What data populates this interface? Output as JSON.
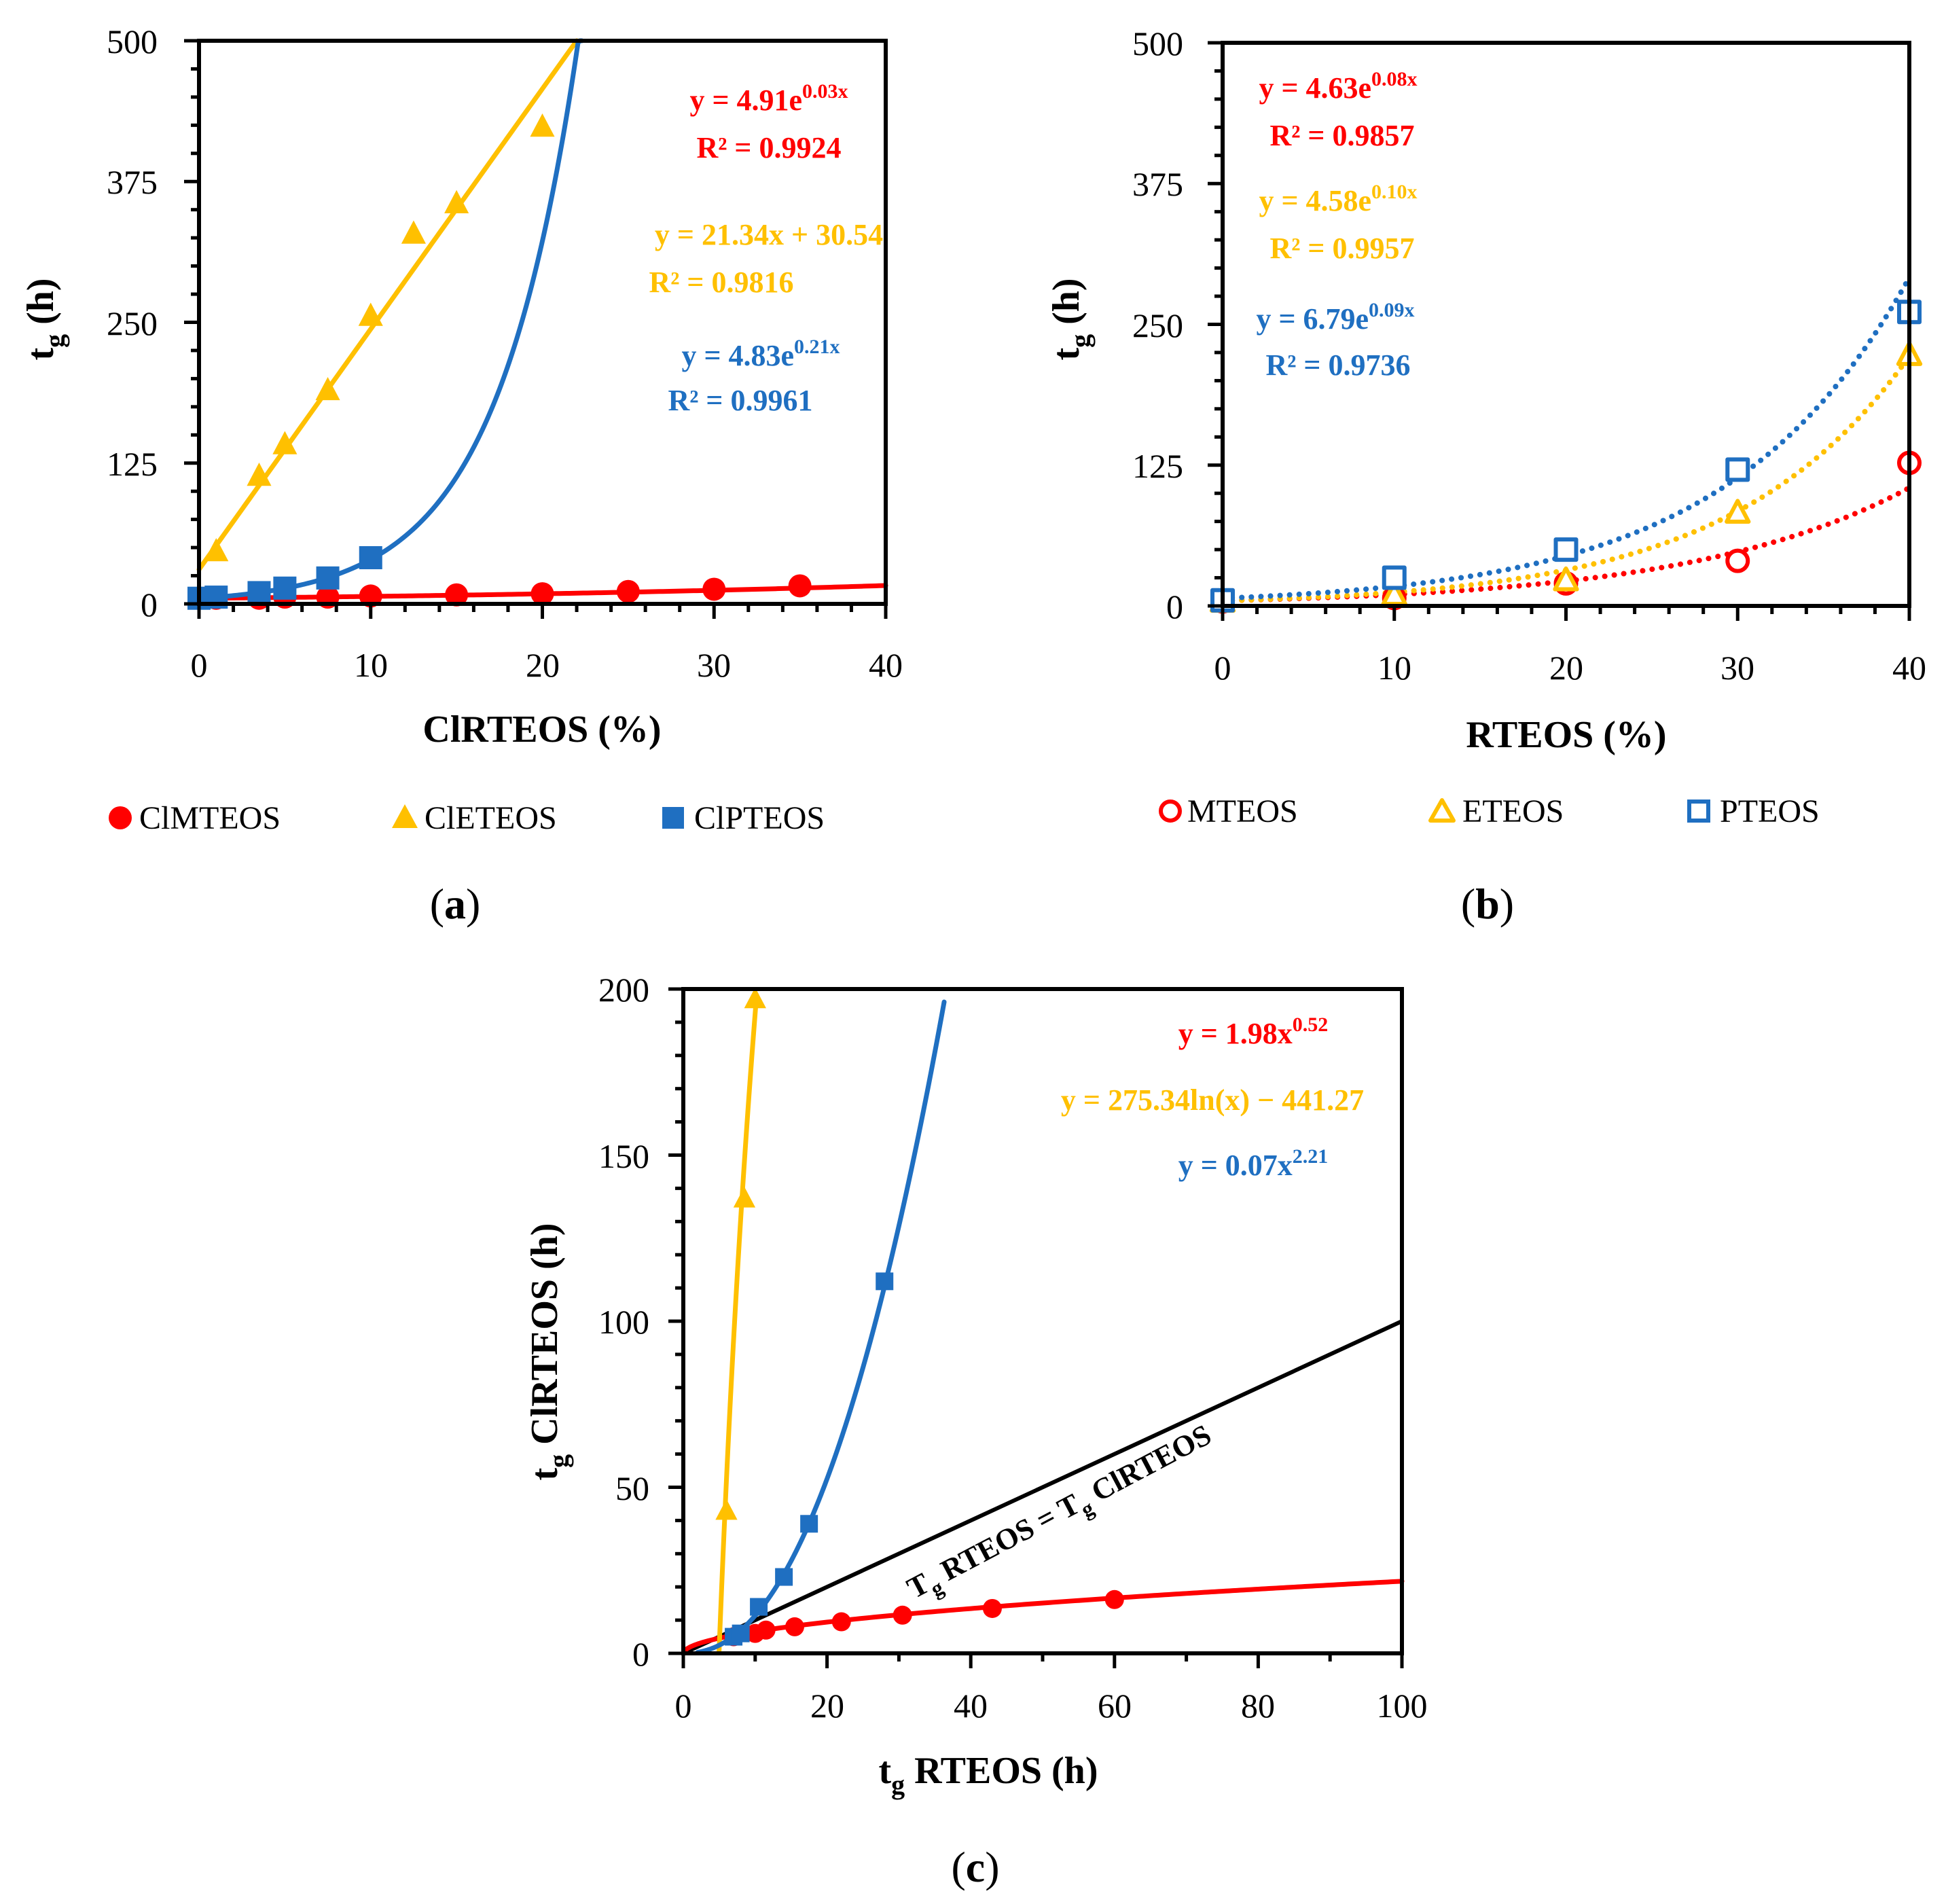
{
  "colors": {
    "red": "#ff0000",
    "yellow": "#ffc000",
    "blue": "#1f6fc1",
    "black": "#000000"
  },
  "chart_data": [
    {
      "panel": "a",
      "panel_tag": "a",
      "type": "scatter",
      "xlabel": "ClRTEOS (%)",
      "ylabel": "t",
      "ylabel_sub": "g",
      "ylabel_unit": "(h)",
      "xlim": [
        0,
        40
      ],
      "ylim": [
        0,
        500
      ],
      "xticks": [
        "0",
        "10",
        "20",
        "30",
        "40"
      ],
      "yticks": [
        "0",
        "125",
        "250",
        "375",
        "500"
      ],
      "series": [
        {
          "name": "ClMTEOS",
          "color": "red",
          "marker": "circle",
          "filled": true,
          "points": [
            [
              0,
              5
            ],
            [
              1,
              5
            ],
            [
              3.5,
              5
            ],
            [
              5,
              6
            ],
            [
              7.5,
              6
            ],
            [
              10,
              7
            ],
            [
              15,
              8
            ],
            [
              20,
              9
            ],
            [
              25,
              11
            ],
            [
              30,
              13
            ],
            [
              35,
              16
            ]
          ],
          "fit": {
            "kind": "exp",
            "a": 4.91,
            "b": 0.03,
            "range": [
              0,
              40
            ],
            "style": "solid"
          },
          "eq": {
            "main": "y = 4.91e",
            "sup": "0.03x",
            "r2": "R² = 0.9924"
          }
        },
        {
          "name": "ClETEOS",
          "color": "yellow",
          "marker": "triangle",
          "filled": true,
          "points": [
            [
              1,
              47
            ],
            [
              3.5,
              114
            ],
            [
              5,
              142
            ],
            [
              7.5,
              190
            ],
            [
              10,
              256
            ],
            [
              12.5,
              329
            ],
            [
              15,
              356
            ],
            [
              20,
              424
            ]
          ],
          "fit": {
            "kind": "linear",
            "a": 21.34,
            "b": 30.54,
            "range": [
              0,
              22
            ],
            "style": "solid"
          },
          "eq": {
            "main": "y = 21.34x + 30.54",
            "sup": "",
            "r2": "R² = 0.9816"
          }
        },
        {
          "name": "ClPTEOS",
          "color": "blue",
          "marker": "square",
          "filled": true,
          "points": [
            [
              0,
              5
            ],
            [
              1,
              6
            ],
            [
              3.5,
              10
            ],
            [
              5,
              14
            ],
            [
              7.5,
              23
            ],
            [
              10,
              41
            ]
          ],
          "fit": {
            "kind": "exp",
            "a": 4.83,
            "b": 0.21,
            "range": [
              0,
              22.3
            ],
            "style": "solid"
          },
          "eq": {
            "main": "y = 4.83e",
            "sup": "0.21x",
            "r2": "R² = 0.9961"
          }
        }
      ]
    },
    {
      "panel": "b",
      "panel_tag": "b",
      "type": "scatter",
      "xlabel": "RTEOS (%)",
      "ylabel": "t",
      "ylabel_sub": "g",
      "ylabel_unit": "(h)",
      "xlim": [
        0,
        40
      ],
      "ylim": [
        0,
        500
      ],
      "xticks": [
        "0",
        "10",
        "20",
        "30",
        "40"
      ],
      "yticks": [
        "0",
        "125",
        "250",
        "375",
        "500"
      ],
      "series": [
        {
          "name": "MTEOS",
          "color": "red",
          "marker": "circle",
          "filled": false,
          "points": [
            [
              0,
              4
            ],
            [
              10,
              7
            ],
            [
              20,
              20
            ],
            [
              30,
              40
            ],
            [
              40,
              127
            ]
          ],
          "fit": {
            "kind": "exp",
            "a": 4.63,
            "b": 0.078,
            "range": [
              0,
              40
            ],
            "style": "dotted"
          },
          "eq": {
            "main": "y = 4.63e",
            "sup": "0.08x",
            "r2": "R² = 0.9857"
          }
        },
        {
          "name": "ETEOS",
          "color": "yellow",
          "marker": "triangle",
          "filled": false,
          "points": [
            [
              0,
              4
            ],
            [
              10,
              10
            ],
            [
              20,
              23
            ],
            [
              30,
              83
            ],
            [
              40,
              223
            ]
          ],
          "fit": {
            "kind": "exp",
            "a": 4.58,
            "b": 0.097,
            "range": [
              0,
              40
            ],
            "style": "dotted"
          },
          "eq": {
            "main": "y = 4.58e",
            "sup": "0.10x",
            "r2": "R² = 0.9957"
          }
        },
        {
          "name": "PTEOS",
          "color": "blue",
          "marker": "square",
          "filled": false,
          "points": [
            [
              0,
              5
            ],
            [
              10,
              25
            ],
            [
              20,
              50
            ],
            [
              30,
              121
            ],
            [
              40,
              261
            ]
          ],
          "fit": {
            "kind": "exp",
            "a": 6.79,
            "b": 0.094,
            "range": [
              0,
              40
            ],
            "style": "dotted"
          },
          "eq": {
            "main": "y = 6.79e",
            "sup": "0.09x",
            "r2": "R² = 0.9736"
          }
        }
      ]
    },
    {
      "panel": "c",
      "panel_tag": "c",
      "type": "scatter",
      "xlabel": "RTEOS (h)",
      "xlabel_prefix": "t",
      "xlabel_sub": "g",
      "ylabel": "ClRTEOS (h)",
      "ylabel_prefix": "t",
      "ylabel_sub": "g",
      "xlim": [
        0,
        100
      ],
      "ylim": [
        0,
        200
      ],
      "xticks": [
        "0",
        "20",
        "40",
        "60",
        "80",
        "100"
      ],
      "yticks": [
        "0",
        "50",
        "100",
        "150",
        "200"
      ],
      "identity_label": {
        "p1": "T",
        "s1": "g",
        "p2": " RTEOS = T",
        "s2": "g",
        "p3": " ClRTEOS"
      },
      "series": [
        {
          "color": "red",
          "marker": "circle",
          "filled": true,
          "points": [
            [
              7,
              5
            ],
            [
              10,
              6
            ],
            [
              11.5,
              7
            ],
            [
              15.5,
              8
            ],
            [
              22,
              9.5
            ],
            [
              30.5,
              11.5
            ],
            [
              43,
              13.5
            ],
            [
              60,
              16.2
            ]
          ],
          "fit": {
            "kind": "power",
            "a": 1.98,
            "b": 0.52,
            "range": [
              0,
              100
            ],
            "style": "solid"
          },
          "eq": {
            "main": "y = 1.98x",
            "sup": "0.52"
          }
        },
        {
          "color": "yellow",
          "marker": "triangle",
          "filled": true,
          "points": [
            [
              6,
              43
            ],
            [
              8.5,
              137
            ],
            [
              10,
              197
            ]
          ],
          "fit": {
            "kind": "log",
            "a": 275.34,
            "b": -441.27,
            "range": [
              4.98,
              10.2
            ],
            "style": "solid"
          },
          "eq": {
            "main": "y = 275.34ln(x) − 441.27",
            "sup": ""
          }
        },
        {
          "color": "blue",
          "marker": "square",
          "filled": true,
          "points": [
            [
              7,
              5
            ],
            [
              8,
              6
            ],
            [
              10.5,
              14
            ],
            [
              14,
              23
            ],
            [
              17.5,
              39
            ],
            [
              28,
              112
            ]
          ],
          "fit": {
            "kind": "power",
            "a": 0.07,
            "b": 2.21,
            "range": [
              2,
              36.3
            ],
            "style": "solid"
          },
          "eq": {
            "main": "y = 0.07x",
            "sup": "2.21"
          }
        }
      ]
    }
  ]
}
